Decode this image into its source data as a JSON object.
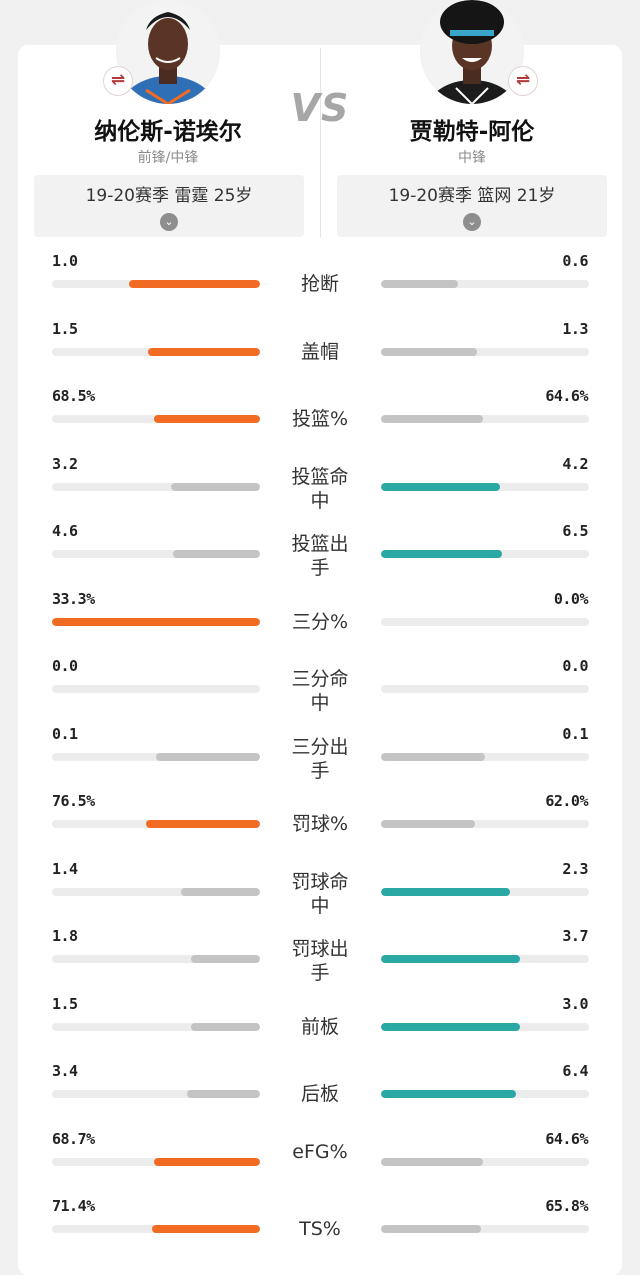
{
  "colors": {
    "orange": "#f26b22",
    "teal": "#2aa8a4",
    "gray": "#c4c4c4",
    "track": "#ececec"
  },
  "vs_label": "VS",
  "left_player": {
    "name": "纳伦斯-诺埃尔",
    "position": "前锋/中锋",
    "season": "19-20赛季 雷霆 25岁",
    "swap_icon": "⇌",
    "chevron_icon": "⌄"
  },
  "right_player": {
    "name": "贾勒特-阿伦",
    "position": "中锋",
    "season": "19-20赛季 篮网 21岁",
    "swap_icon": "⇌",
    "chevron_icon": "⌄"
  },
  "stats": [
    {
      "label": "抢断",
      "left": "1.0",
      "right": "0.6",
      "left_fill": 0.63,
      "right_fill": 0.37,
      "winner": "left"
    },
    {
      "label": "盖帽",
      "left": "1.5",
      "right": "1.3",
      "left_fill": 0.54,
      "right_fill": 0.46,
      "winner": "left"
    },
    {
      "label": "投篮%",
      "left": "68.5%",
      "right": "64.6%",
      "left_fill": 0.51,
      "right_fill": 0.49,
      "winner": "left"
    },
    {
      "label": "投篮命中",
      "left": "3.2",
      "right": "4.2",
      "left_fill": 0.43,
      "right_fill": 0.57,
      "winner": "right"
    },
    {
      "label": "投篮出手",
      "left": "4.6",
      "right": "6.5",
      "left_fill": 0.42,
      "right_fill": 0.58,
      "winner": "right"
    },
    {
      "label": "三分%",
      "left": "33.3%",
      "right": "0.0%",
      "left_fill": 1.0,
      "right_fill": 0.0,
      "winner": "left"
    },
    {
      "label": "三分命中",
      "left": "0.0",
      "right": "0.0",
      "left_fill": 0.0,
      "right_fill": 0.0,
      "winner": "none"
    },
    {
      "label": "三分出手",
      "left": "0.1",
      "right": "0.1",
      "left_fill": 0.5,
      "right_fill": 0.5,
      "winner": "none"
    },
    {
      "label": "罚球%",
      "left": "76.5%",
      "right": "62.0%",
      "left_fill": 0.55,
      "right_fill": 0.45,
      "winner": "left"
    },
    {
      "label": "罚球命中",
      "left": "1.4",
      "right": "2.3",
      "left_fill": 0.38,
      "right_fill": 0.62,
      "winner": "right"
    },
    {
      "label": "罚球出手",
      "left": "1.8",
      "right": "3.7",
      "left_fill": 0.33,
      "right_fill": 0.67,
      "winner": "right"
    },
    {
      "label": "前板",
      "left": "1.5",
      "right": "3.0",
      "left_fill": 0.33,
      "right_fill": 0.67,
      "winner": "right"
    },
    {
      "label": "后板",
      "left": "3.4",
      "right": "6.4",
      "left_fill": 0.35,
      "right_fill": 0.65,
      "winner": "right"
    },
    {
      "label": "eFG%",
      "left": "68.7%",
      "right": "64.6%",
      "left_fill": 0.51,
      "right_fill": 0.49,
      "winner": "left"
    },
    {
      "label": "TS%",
      "left": "71.4%",
      "right": "65.8%",
      "left_fill": 0.52,
      "right_fill": 0.48,
      "winner": "left"
    }
  ]
}
